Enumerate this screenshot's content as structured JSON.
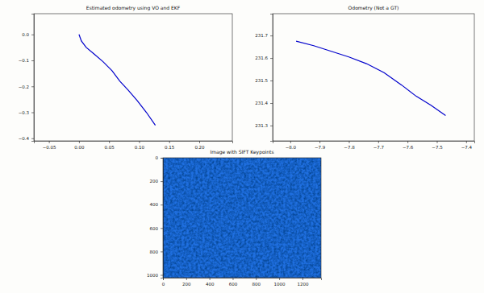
{
  "chart_data": [
    {
      "type": "line",
      "title": "Estimated odometry using VO and EKF",
      "x": [
        0.0,
        0.004,
        0.012,
        0.025,
        0.04,
        0.055,
        0.068,
        0.082,
        0.097,
        0.112,
        0.127
      ],
      "values": [
        0.0,
        -0.025,
        -0.05,
        -0.075,
        -0.105,
        -0.14,
        -0.18,
        -0.215,
        -0.255,
        -0.3,
        -0.35
      ],
      "color": "#0000cc",
      "xlim": [
        -0.075,
        0.255
      ],
      "xticks": [
        {
          "value": -0.05,
          "label": "−0.05"
        },
        {
          "value": 0,
          "label": "0.00"
        },
        {
          "value": 0.05,
          "label": "0.05"
        },
        {
          "value": 0.1,
          "label": "0.10"
        },
        {
          "value": 0.15,
          "label": "0.15"
        },
        {
          "value": 0.2,
          "label": "0.20"
        }
      ],
      "ylim": [
        -0.41,
        0.08
      ],
      "yticks": [
        {
          "value": 0,
          "label": "0.0"
        },
        {
          "value": -0.1,
          "label": "−0.1"
        },
        {
          "value": -0.2,
          "label": "−0.2"
        },
        {
          "value": -0.3,
          "label": "−0.3"
        },
        {
          "value": -0.4,
          "label": "−0.4"
        }
      ]
    },
    {
      "type": "line",
      "title": "Odometry (Not a GT)",
      "x": [
        -7.98,
        -7.92,
        -7.86,
        -7.8,
        -7.74,
        -7.68,
        -7.62,
        -7.57,
        -7.52,
        -7.47
      ],
      "values": [
        231.675,
        231.655,
        231.63,
        231.605,
        231.575,
        231.535,
        231.48,
        231.43,
        231.39,
        231.345
      ],
      "color": "#0000cc",
      "xlim": [
        -8.06,
        -7.372
      ],
      "xticks": [
        {
          "value": -8.0,
          "label": "−8.0"
        },
        {
          "value": -7.9,
          "label": "−7.9"
        },
        {
          "value": -7.8,
          "label": "−7.8"
        },
        {
          "value": -7.7,
          "label": "−7.7"
        },
        {
          "value": -7.6,
          "label": "−7.6"
        },
        {
          "value": -7.5,
          "label": "−7.5"
        },
        {
          "value": -7.4,
          "label": "−7.4"
        }
      ],
      "ylim": [
        231.232,
        231.797
      ],
      "yticks": [
        231.3,
        231.4,
        231.5,
        231.6,
        231.7
      ]
    },
    {
      "type": "image",
      "title": "Image with SIFT Keypoints",
      "color": "#1f6fe0",
      "xlim": [
        0,
        1360
      ],
      "xticks": [
        0,
        200,
        400,
        600,
        800,
        1000,
        1200
      ],
      "ylim": [
        0,
        1024
      ],
      "yticks": [
        0,
        200,
        400,
        600,
        800,
        1000
      ]
    }
  ]
}
